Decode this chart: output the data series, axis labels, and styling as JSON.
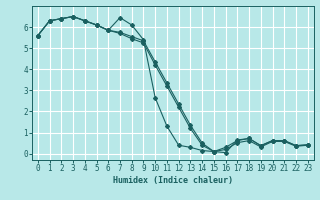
{
  "xlabel": "Humidex (Indice chaleur)",
  "bg_color": "#b8e8e8",
  "grid_color": "#e8ffff",
  "line_color": "#1a6060",
  "xlim": [
    -0.5,
    23.5
  ],
  "ylim": [
    -0.3,
    7.0
  ],
  "xticks": [
    0,
    1,
    2,
    3,
    4,
    5,
    6,
    7,
    8,
    9,
    10,
    11,
    12,
    13,
    14,
    15,
    16,
    17,
    18,
    19,
    20,
    21,
    22,
    23
  ],
  "yticks": [
    0,
    1,
    2,
    3,
    4,
    5,
    6
  ],
  "line1_x": [
    0,
    1,
    2,
    3,
    4,
    5,
    6,
    7,
    8,
    9,
    10,
    11,
    12,
    13,
    14,
    15,
    16,
    17,
    18,
    19,
    20,
    21,
    22,
    23
  ],
  "line1_y": [
    5.6,
    6.3,
    6.4,
    6.5,
    6.3,
    6.1,
    5.85,
    6.45,
    6.1,
    5.4,
    2.65,
    1.3,
    0.4,
    0.3,
    0.15,
    0.1,
    0.05,
    0.65,
    0.72,
    0.38,
    0.62,
    0.62,
    0.38,
    0.42
  ],
  "line2_x": [
    0,
    1,
    2,
    3,
    4,
    5,
    6,
    7,
    8,
    9,
    10,
    11,
    12,
    13,
    14,
    15,
    16,
    17,
    18,
    19,
    20,
    21,
    22,
    23
  ],
  "line2_y": [
    5.6,
    6.3,
    6.4,
    6.5,
    6.3,
    6.1,
    5.85,
    5.75,
    5.55,
    5.35,
    4.35,
    3.35,
    2.35,
    1.35,
    0.5,
    0.1,
    0.3,
    0.62,
    0.72,
    0.38,
    0.62,
    0.62,
    0.38,
    0.42
  ],
  "line3_x": [
    0,
    1,
    2,
    3,
    4,
    5,
    6,
    7,
    8,
    9,
    10,
    11,
    12,
    13,
    14,
    15,
    16,
    17,
    18,
    19,
    20,
    21,
    22,
    23
  ],
  "line3_y": [
    5.6,
    6.3,
    6.4,
    6.5,
    6.3,
    6.1,
    5.85,
    5.7,
    5.45,
    5.25,
    4.2,
    3.2,
    2.2,
    1.2,
    0.4,
    0.1,
    0.2,
    0.52,
    0.62,
    0.32,
    0.58,
    0.58,
    0.35,
    0.4
  ]
}
